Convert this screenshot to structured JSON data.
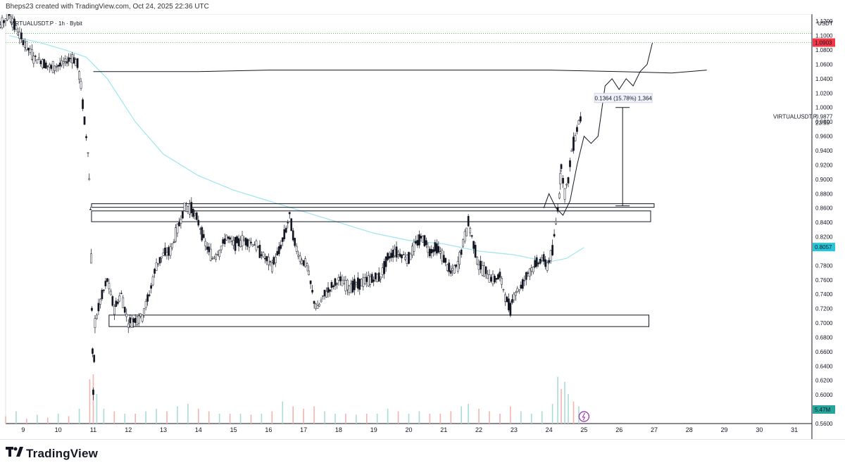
{
  "header": {
    "attribution": "Bheps23 created with TradingView.com, Oct 24, 2025 22:36 UTC"
  },
  "footer": {
    "brand": "TradingView",
    "logo_icon": "tradingview-logo-icon"
  },
  "colors": {
    "candle": "#131722",
    "ma_line": "#9ee6ee",
    "volume_up": "#a9dcd7",
    "volume_down": "#f5b3b0",
    "target_dotted": "#4caf50",
    "price_badge": "#26c6da",
    "volume_badge": "#26a69a",
    "red_level_badge": "#f23645",
    "event_icon": "#9c27b0"
  },
  "chart_data": {
    "type": "candlestick",
    "symbol_label": "VIRTUALUSDT.P · 1h · Bybit",
    "currency": "USDT",
    "y_ticks": [
      "1.1200",
      "1.1000",
      "1.0800",
      "1.0600",
      "1.0400",
      "1.0200",
      "1.0000",
      "0.9800",
      "0.9600",
      "0.9400",
      "0.9200",
      "0.9000",
      "0.8800",
      "0.8600",
      "0.8400",
      "0.8200",
      "0.7800",
      "0.7600",
      "0.7400",
      "0.7200",
      "0.7000",
      "0.6800",
      "0.6600",
      "0.6400",
      "0.6200",
      "0.6000",
      "0.5800",
      "0.5600"
    ],
    "x_ticks": [
      "9",
      "10",
      "11",
      "12",
      "13",
      "14",
      "15",
      "16",
      "17",
      "18",
      "19",
      "20",
      "21",
      "22",
      "23",
      "24",
      "25",
      "26",
      "27",
      "28",
      "29",
      "30",
      "31"
    ],
    "ylim": [
      0.56,
      1.13
    ],
    "badges": {
      "red_level": "1.0903",
      "last_price": "0.8057",
      "volume": "5.47M"
    },
    "last_price_label": {
      "symbol": "VIRTUALUSDT.P",
      "price": "0.9877",
      "countdown": "23:55"
    },
    "measure_label": "0.1364 (15.78%) 1,364",
    "measure": {
      "from_price": 0.863,
      "to_price": 1.0,
      "day": 26.1
    },
    "resistance_line_price": 1.05,
    "dotted_levels": [
      1.0903,
      1.103
    ],
    "zones": [
      {
        "name": "upper-zone-1",
        "top": 0.866,
        "bottom": 0.861,
        "day_from": 10.95,
        "day_to": 27.0
      },
      {
        "name": "upper-zone-2",
        "top": 0.856,
        "bottom": 0.841,
        "day_from": 10.95,
        "day_to": 26.9
      },
      {
        "name": "lower-zone",
        "top": 0.711,
        "bottom": 0.695,
        "day_from": 11.45,
        "day_to": 26.85
      }
    ],
    "price_path": [
      [
        8.0,
        1.08
      ],
      [
        8.3,
        1.11
      ],
      [
        8.6,
        1.13
      ],
      [
        8.9,
        1.1
      ],
      [
        9.1,
        1.085
      ],
      [
        9.3,
        1.07
      ],
      [
        9.5,
        1.065
      ],
      [
        9.8,
        1.055
      ],
      [
        10.1,
        1.06
      ],
      [
        10.4,
        1.07
      ],
      [
        10.55,
        1.06
      ],
      [
        10.65,
        1.03
      ],
      [
        10.75,
        0.98
      ],
      [
        10.85,
        0.94
      ],
      [
        10.92,
        0.86
      ],
      [
        10.96,
        0.72
      ],
      [
        11.0,
        0.6
      ],
      [
        11.05,
        0.7
      ],
      [
        11.2,
        0.73
      ],
      [
        11.4,
        0.76
      ],
      [
        11.6,
        0.72
      ],
      [
        11.8,
        0.74
      ],
      [
        12.0,
        0.7
      ],
      [
        12.2,
        0.705
      ],
      [
        12.4,
        0.71
      ],
      [
        12.6,
        0.74
      ],
      [
        12.8,
        0.78
      ],
      [
        13.0,
        0.795
      ],
      [
        13.2,
        0.8
      ],
      [
        13.4,
        0.83
      ],
      [
        13.6,
        0.86
      ],
      [
        13.8,
        0.86
      ],
      [
        14.0,
        0.84
      ],
      [
        14.2,
        0.81
      ],
      [
        14.4,
        0.79
      ],
      [
        14.6,
        0.8
      ],
      [
        14.8,
        0.82
      ],
      [
        15.0,
        0.81
      ],
      [
        15.3,
        0.815
      ],
      [
        15.6,
        0.81
      ],
      [
        15.9,
        0.79
      ],
      [
        16.1,
        0.78
      ],
      [
        16.3,
        0.8
      ],
      [
        16.5,
        0.83
      ],
      [
        16.6,
        0.85
      ],
      [
        16.75,
        0.81
      ],
      [
        16.9,
        0.79
      ],
      [
        17.1,
        0.78
      ],
      [
        17.3,
        0.73
      ],
      [
        17.4,
        0.72
      ],
      [
        17.6,
        0.74
      ],
      [
        17.8,
        0.75
      ],
      [
        18.0,
        0.76
      ],
      [
        18.3,
        0.75
      ],
      [
        18.6,
        0.755
      ],
      [
        18.9,
        0.76
      ],
      [
        19.2,
        0.765
      ],
      [
        19.4,
        0.79
      ],
      [
        19.6,
        0.8
      ],
      [
        19.8,
        0.795
      ],
      [
        20.0,
        0.79
      ],
      [
        20.2,
        0.81
      ],
      [
        20.4,
        0.82
      ],
      [
        20.6,
        0.8
      ],
      [
        20.8,
        0.805
      ],
      [
        21.0,
        0.79
      ],
      [
        21.2,
        0.77
      ],
      [
        21.4,
        0.78
      ],
      [
        21.6,
        0.82
      ],
      [
        21.7,
        0.84
      ],
      [
        21.85,
        0.81
      ],
      [
        22.0,
        0.78
      ],
      [
        22.2,
        0.77
      ],
      [
        22.4,
        0.76
      ],
      [
        22.6,
        0.765
      ],
      [
        22.8,
        0.73
      ],
      [
        22.9,
        0.72
      ],
      [
        23.0,
        0.74
      ],
      [
        23.2,
        0.75
      ],
      [
        23.4,
        0.77
      ],
      [
        23.6,
        0.78
      ],
      [
        23.8,
        0.79
      ],
      [
        23.95,
        0.78
      ],
      [
        24.1,
        0.8
      ],
      [
        24.2,
        0.84
      ],
      [
        24.3,
        0.88
      ],
      [
        24.35,
        0.92
      ],
      [
        24.45,
        0.88
      ],
      [
        24.55,
        0.9
      ],
      [
        24.65,
        0.94
      ],
      [
        24.75,
        0.96
      ],
      [
        24.85,
        0.98
      ],
      [
        24.95,
        0.99
      ]
    ],
    "ma_path": [
      [
        8.6,
        1.1
      ],
      [
        9.5,
        1.09
      ],
      [
        10.2,
        1.08
      ],
      [
        10.8,
        1.07
      ],
      [
        11.4,
        1.04
      ],
      [
        12.2,
        0.98
      ],
      [
        13.0,
        0.935
      ],
      [
        14.0,
        0.905
      ],
      [
        15.0,
        0.885
      ],
      [
        16.0,
        0.87
      ],
      [
        17.0,
        0.855
      ],
      [
        18.0,
        0.84
      ],
      [
        19.0,
        0.825
      ],
      [
        20.0,
        0.815
      ],
      [
        21.0,
        0.81
      ],
      [
        22.0,
        0.8
      ],
      [
        23.0,
        0.795
      ],
      [
        24.0,
        0.785
      ],
      [
        24.5,
        0.79
      ],
      [
        25.0,
        0.805
      ]
    ],
    "forecast_path": [
      [
        23.85,
        0.86
      ],
      [
        24.0,
        0.88
      ],
      [
        24.2,
        0.86
      ],
      [
        24.4,
        0.85
      ],
      [
        24.6,
        0.87
      ],
      [
        24.8,
        0.92
      ],
      [
        25.0,
        0.96
      ],
      [
        25.2,
        0.95
      ],
      [
        25.4,
        0.96
      ],
      [
        25.6,
        1.03
      ],
      [
        25.8,
        1.04
      ],
      [
        26.0,
        1.025
      ],
      [
        26.2,
        1.04
      ],
      [
        26.4,
        1.03
      ],
      [
        26.6,
        1.05
      ],
      [
        26.8,
        1.06
      ],
      [
        26.95,
        1.09
      ]
    ],
    "resistance_curve": [
      [
        11.0,
        1.05
      ],
      [
        14.0,
        1.05
      ],
      [
        16.0,
        1.052
      ],
      [
        20.0,
        1.052
      ],
      [
        24.0,
        1.052
      ],
      [
        26.0,
        1.05
      ],
      [
        27.5,
        1.048
      ],
      [
        28.5,
        1.052
      ]
    ],
    "volume": [
      [
        8.2,
        0.2,
        "u"
      ],
      [
        8.5,
        0.15,
        "d"
      ],
      [
        8.8,
        0.25,
        "u"
      ],
      [
        9.1,
        0.1,
        "d"
      ],
      [
        9.4,
        0.18,
        "u"
      ],
      [
        9.7,
        0.12,
        "d"
      ],
      [
        10.0,
        0.2,
        "u"
      ],
      [
        10.3,
        0.15,
        "d"
      ],
      [
        10.6,
        0.3,
        "u"
      ],
      [
        10.9,
        0.9,
        "d"
      ],
      [
        11.0,
        1.0,
        "d"
      ],
      [
        11.1,
        0.6,
        "u"
      ],
      [
        11.3,
        0.3,
        "u"
      ],
      [
        11.6,
        0.25,
        "d"
      ],
      [
        11.9,
        0.2,
        "u"
      ],
      [
        12.2,
        0.2,
        "d"
      ],
      [
        12.5,
        0.25,
        "u"
      ],
      [
        12.8,
        0.3,
        "u"
      ],
      [
        13.1,
        0.25,
        "d"
      ],
      [
        13.4,
        0.35,
        "u"
      ],
      [
        13.7,
        0.4,
        "u"
      ],
      [
        14.0,
        0.3,
        "d"
      ],
      [
        14.3,
        0.25,
        "d"
      ],
      [
        14.6,
        0.2,
        "u"
      ],
      [
        14.9,
        0.2,
        "d"
      ],
      [
        15.2,
        0.2,
        "u"
      ],
      [
        15.5,
        0.18,
        "d"
      ],
      [
        15.8,
        0.2,
        "u"
      ],
      [
        16.1,
        0.25,
        "d"
      ],
      [
        16.4,
        0.45,
        "u"
      ],
      [
        16.7,
        0.35,
        "d"
      ],
      [
        17.0,
        0.3,
        "d"
      ],
      [
        17.3,
        0.35,
        "d"
      ],
      [
        17.6,
        0.25,
        "u"
      ],
      [
        17.9,
        0.2,
        "u"
      ],
      [
        18.2,
        0.2,
        "d"
      ],
      [
        18.5,
        0.18,
        "u"
      ],
      [
        18.8,
        0.2,
        "d"
      ],
      [
        19.1,
        0.2,
        "u"
      ],
      [
        19.4,
        0.3,
        "u"
      ],
      [
        19.7,
        0.25,
        "d"
      ],
      [
        20.0,
        0.2,
        "u"
      ],
      [
        20.3,
        0.25,
        "u"
      ],
      [
        20.6,
        0.2,
        "d"
      ],
      [
        20.9,
        0.2,
        "d"
      ],
      [
        21.2,
        0.25,
        "d"
      ],
      [
        21.5,
        0.35,
        "u"
      ],
      [
        21.7,
        0.4,
        "u"
      ],
      [
        22.0,
        0.3,
        "d"
      ],
      [
        22.3,
        0.25,
        "d"
      ],
      [
        22.6,
        0.2,
        "d"
      ],
      [
        22.9,
        0.35,
        "d"
      ],
      [
        23.2,
        0.25,
        "u"
      ],
      [
        23.5,
        0.2,
        "u"
      ],
      [
        23.8,
        0.25,
        "u"
      ],
      [
        24.1,
        0.4,
        "u"
      ],
      [
        24.25,
        0.95,
        "u"
      ],
      [
        24.35,
        0.7,
        "d"
      ],
      [
        24.45,
        0.85,
        "u"
      ],
      [
        24.55,
        0.6,
        "u"
      ],
      [
        24.7,
        0.45,
        "d"
      ],
      [
        24.85,
        0.35,
        "u"
      ]
    ]
  }
}
